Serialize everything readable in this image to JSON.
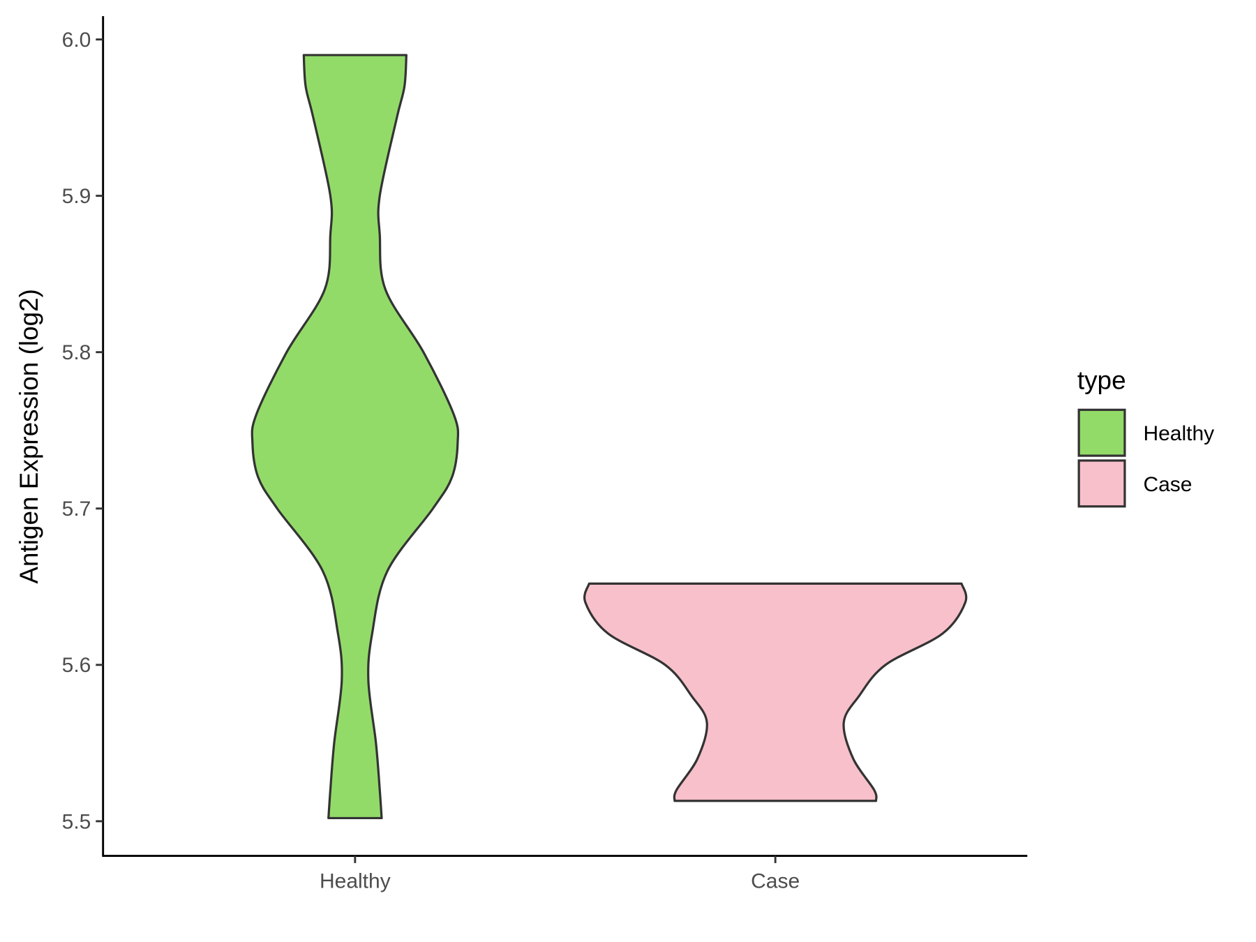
{
  "chart_data": {
    "type": "violin",
    "title": "",
    "xlabel": "",
    "ylabel": "Antigen Expression (log2)",
    "ylim": [
      5.478,
      6.015
    ],
    "yticks": [
      "5.5",
      "5.6",
      "5.7",
      "5.8",
      "5.9",
      "6.0"
    ],
    "categories": [
      "Healthy",
      "Case"
    ],
    "grid": false,
    "legend": {
      "title": "type",
      "position": "right",
      "entries": [
        "Healthy",
        "Case"
      ]
    },
    "series": [
      {
        "name": "Healthy",
        "color": "#93DB69",
        "min": 5.502,
        "max": 5.99,
        "density_profile": [
          [
            5.502,
            0.14
          ],
          [
            5.52,
            0.13
          ],
          [
            5.55,
            0.11
          ],
          [
            5.59,
            0.07
          ],
          [
            5.62,
            0.09
          ],
          [
            5.66,
            0.17
          ],
          [
            5.7,
            0.41
          ],
          [
            5.72,
            0.51
          ],
          [
            5.742,
            0.54
          ],
          [
            5.76,
            0.52
          ],
          [
            5.8,
            0.36
          ],
          [
            5.84,
            0.16
          ],
          [
            5.875,
            0.13
          ],
          [
            5.9,
            0.13
          ],
          [
            5.95,
            0.22
          ],
          [
            5.97,
            0.26
          ],
          [
            5.99,
            0.27
          ]
        ]
      },
      {
        "name": "Case",
        "color": "#F7C0CB",
        "min": 5.513,
        "max": 5.652,
        "density_profile": [
          [
            5.513,
            0.53
          ],
          [
            5.52,
            0.52
          ],
          [
            5.54,
            0.41
          ],
          [
            5.563,
            0.36
          ],
          [
            5.58,
            0.44
          ],
          [
            5.6,
            0.58
          ],
          [
            5.62,
            0.88
          ],
          [
            5.64,
            1.0
          ],
          [
            5.652,
            0.98
          ]
        ]
      }
    ],
    "outline_color": "#333333"
  }
}
